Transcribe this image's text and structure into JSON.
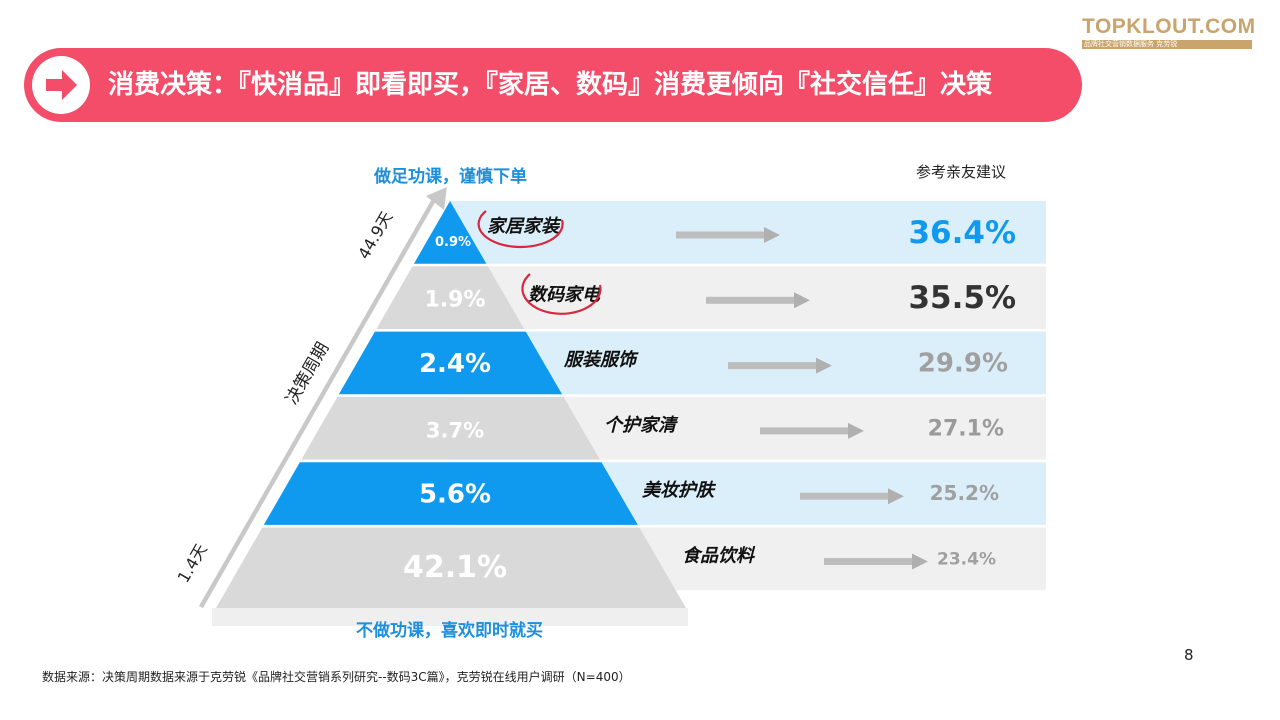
{
  "header": {
    "title": "消费决策：『快消品』即看即买，『家居、数码』消费更倾向『社交信任』决策",
    "logo_text": "TOPKLOUT.COM",
    "logo_sub": "品牌社交营销数据服务 克劳锐"
  },
  "captions": {
    "top": "做足功课，谨慎下单",
    "bottom": "不做功课，喜欢即时就买",
    "axis_label": "决策周期",
    "axis_top": "44.9天",
    "axis_bottom": "1.4天",
    "right_header": "参考亲友建议"
  },
  "footnote": "数据来源：决策周期数据来源于克劳锐《品牌社交营销系列研究--数码3C篇》，克劳锐在线用户调研（N=400）",
  "page_number": "8",
  "colors": {
    "accent_blue": "#0f9af0",
    "band_blue": "#dbeffb",
    "band_gray": "#f0f0f0",
    "banner_red": "#f34d69",
    "tier_gray": "#d9d9d9",
    "circle_red": "#d7283f"
  },
  "chart_data": {
    "type": "pyramid",
    "categories": [
      "家居家装",
      "数码家电",
      "服装服饰",
      "个护家清",
      "美妆护肤",
      "食品饮料"
    ],
    "series": [
      {
        "values": [
          0.9,
          1.9,
          2.4,
          3.7,
          5.6,
          42.1
        ],
        "labels": [
          "0.9%",
          "1.9%",
          "2.4%",
          "3.7%",
          "5.6%",
          "42.1%"
        ]
      },
      {
        "values": [
          36.4,
          35.5,
          29.9,
          27.1,
          25.2,
          23.4
        ],
        "labels": [
          "36.4%",
          "35.5%",
          "29.9%",
          "27.1%",
          "25.2%",
          "23.4%"
        ]
      }
    ],
    "highlighted": [
      "家居家装",
      "数码家电"
    ]
  }
}
